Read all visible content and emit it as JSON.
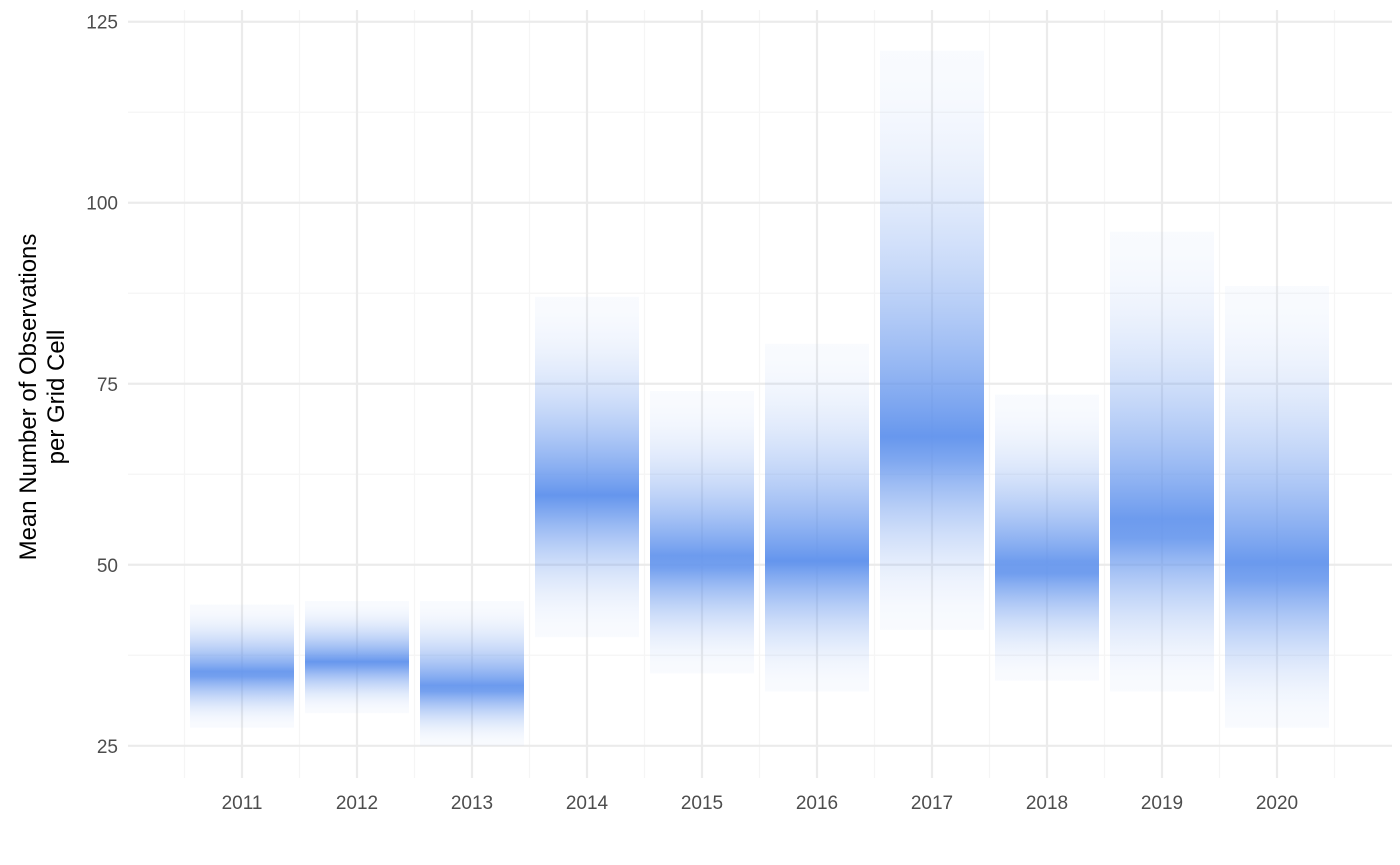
{
  "chart_data": {
    "type": "bar",
    "style": "gradient-interval",
    "title": "",
    "xlabel": "",
    "ylabel_lines": [
      "Mean Number of Observations",
      "per Grid Cell"
    ],
    "categories": [
      "2011",
      "2012",
      "2013",
      "2014",
      "2015",
      "2016",
      "2017",
      "2018",
      "2019",
      "2020"
    ],
    "center": [
      35,
      36.5,
      33,
      59.5,
      50.5,
      50.5,
      67,
      49.5,
      55,
      49.5
    ],
    "lower": [
      27.5,
      29.5,
      25,
      40,
      35,
      32.5,
      41,
      34,
      32.5,
      27.5
    ],
    "upper": [
      44.5,
      45,
      45,
      87,
      74,
      80.5,
      121,
      73.5,
      96,
      88.5
    ],
    "y_ticks": [
      25,
      50,
      75,
      100,
      125
    ],
    "ylim": [
      20,
      128
    ],
    "grid": true,
    "legend": "none",
    "colors": {
      "fill": "#6495ED",
      "grid": "#ebebeb",
      "grid_minor": "#f5f5f5"
    }
  }
}
